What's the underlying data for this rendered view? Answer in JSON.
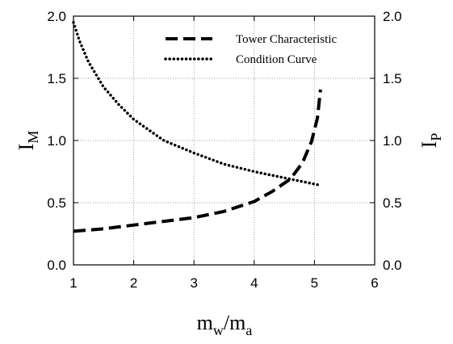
{
  "chart_data": {
    "type": "line",
    "x_axis": {
      "label_main": "m",
      "label_sub1": "w",
      "label_slash": "/m",
      "label_sub2": "a",
      "range": [
        1,
        6
      ],
      "ticks": [
        1,
        2,
        3,
        4,
        5,
        6
      ],
      "tick_labels": [
        "1",
        "2",
        "3",
        "4",
        "5",
        "6"
      ]
    },
    "y_axis_left": {
      "label_main": "I",
      "label_sub": "M",
      "range": [
        0,
        2
      ],
      "ticks": [
        0,
        0.5,
        1,
        1.5,
        2
      ],
      "tick_labels": [
        "0.0",
        "0.5",
        "1.0",
        "1.5",
        "2.0"
      ]
    },
    "y_axis_right": {
      "label_main": "I",
      "label_sub": "P",
      "range": [
        0,
        2
      ],
      "ticks": [
        0,
        0.5,
        1,
        1.5,
        2
      ],
      "tick_labels": [
        "0.0",
        "0.5",
        "1.0",
        "1.5",
        "2.0"
      ]
    },
    "grid": true,
    "legend_position": "top-right",
    "series": [
      {
        "name": "Tower Characteristic",
        "style": "dashed",
        "color": "#000000",
        "x": [
          1.0,
          1.5,
          2.0,
          2.5,
          3.0,
          3.5,
          4.0,
          4.3,
          4.6,
          4.8,
          4.95,
          5.05,
          5.1
        ],
        "y": [
          0.27,
          0.29,
          0.32,
          0.35,
          0.38,
          0.43,
          0.51,
          0.59,
          0.69,
          0.82,
          0.99,
          1.18,
          1.41
        ]
      },
      {
        "name": "Condition Curve",
        "style": "dotted",
        "color": "#000000",
        "x": [
          1.0,
          1.1,
          1.25,
          1.5,
          1.75,
          2.0,
          2.5,
          3.0,
          3.5,
          4.0,
          4.5,
          5.0,
          5.1
        ],
        "y": [
          1.95,
          1.8,
          1.63,
          1.43,
          1.29,
          1.17,
          1.0,
          0.9,
          0.81,
          0.75,
          0.7,
          0.65,
          0.64
        ]
      }
    ]
  }
}
